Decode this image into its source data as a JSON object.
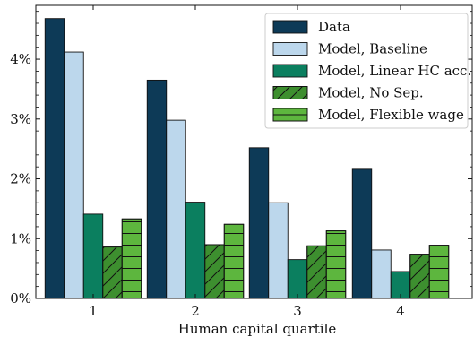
{
  "chart_data": {
    "type": "bar",
    "title": "",
    "xlabel": "Human capital quartile",
    "ylabel": "",
    "categories": [
      "1",
      "2",
      "3",
      "4"
    ],
    "ylim": [
      0,
      4.9
    ],
    "yticks": [
      0,
      1,
      2,
      3,
      4
    ],
    "ytick_labels": [
      "0%",
      "1%",
      "2%",
      "3%",
      "4%"
    ],
    "grid": false,
    "legend_position": "top-right",
    "series": [
      {
        "name": "Data",
        "values": [
          4.68,
          3.65,
          2.52,
          2.16
        ],
        "color": "#0d3a57",
        "hatch": "none"
      },
      {
        "name": "Model, Baseline",
        "values": [
          4.12,
          2.98,
          1.6,
          0.81
        ],
        "color": "#bcd7ec",
        "hatch": "none"
      },
      {
        "name": "Model, Linear HC acc.",
        "values": [
          1.41,
          1.61,
          0.65,
          0.45
        ],
        "color": "#0b7f5f",
        "hatch": "none"
      },
      {
        "name": "Model, No Sep.",
        "values": [
          0.86,
          0.9,
          0.88,
          0.74
        ],
        "color": "#3d8f2f",
        "hatch": "diagonal"
      },
      {
        "name": "Model, Flexible wage",
        "values": [
          1.33,
          1.24,
          1.13,
          0.89
        ],
        "color": "#5db63e",
        "hatch": "horizontal"
      }
    ]
  }
}
